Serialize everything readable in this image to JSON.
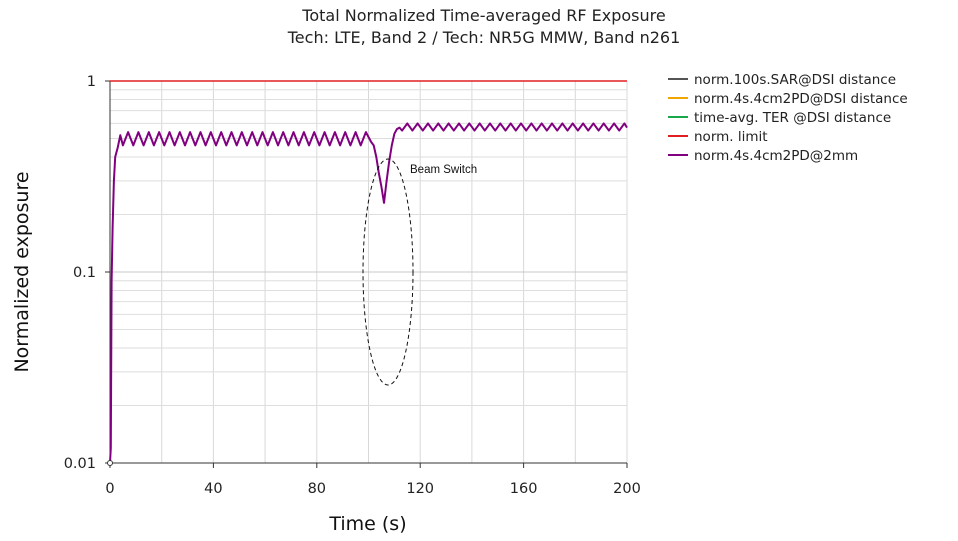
{
  "chart_data": {
    "type": "line",
    "title": "Total Normalized Time-averaged RF Exposure",
    "subtitle": "Tech: LTE, Band 2 / Tech: NR5G MMW, Band n261",
    "xlabel": "Time (s)",
    "ylabel": "Normalized exposure",
    "xlim": [
      0,
      200
    ],
    "ylim": [
      0.01,
      1
    ],
    "yscale": "log",
    "grid": true,
    "legend_position": "right",
    "x_ticks": [
      "0",
      "40",
      "80",
      "120",
      "160",
      "200"
    ],
    "y_ticks": [
      "0.01",
      "0.1",
      "1"
    ],
    "annotation": "Beam Switch",
    "series": [
      {
        "name": "norm.100s.SAR@DSI distance",
        "color": "#555555",
        "x": [],
        "y": []
      },
      {
        "name": "norm.4s.4cm2PD@DSI distance",
        "color": "#f0a500",
        "x": [],
        "y": []
      },
      {
        "name": "time-avg. TER @DSI distance",
        "color": "#1aa84c",
        "x": [],
        "y": []
      },
      {
        "name": "norm. limit",
        "color": "#e02020",
        "x": [
          0,
          200
        ],
        "y": [
          1,
          1
        ]
      },
      {
        "name": "norm.4s.4cm2PD@2mm",
        "color": "#800080",
        "x": [
          0,
          0.3,
          0.6,
          1,
          1.5,
          2,
          3,
          4,
          5,
          7,
          9,
          11,
          13,
          15,
          17,
          19,
          21,
          23,
          25,
          27,
          29,
          31,
          33,
          35,
          37,
          39,
          41,
          43,
          45,
          47,
          49,
          51,
          53,
          55,
          57,
          59,
          61,
          63,
          65,
          67,
          69,
          71,
          73,
          75,
          77,
          79,
          81,
          83,
          85,
          87,
          89,
          91,
          93,
          95,
          97,
          99,
          101,
          102,
          103,
          104,
          105,
          106,
          107,
          108,
          109,
          110,
          111,
          112,
          113,
          115,
          117,
          119,
          121,
          123,
          125,
          127,
          129,
          131,
          133,
          135,
          137,
          139,
          141,
          143,
          145,
          147,
          149,
          151,
          153,
          155,
          157,
          159,
          161,
          163,
          165,
          167,
          169,
          171,
          173,
          175,
          177,
          179,
          181,
          183,
          185,
          187,
          189,
          191,
          193,
          195,
          197,
          199,
          200
        ],
        "y": [
          0.01,
          0.012,
          0.09,
          0.17,
          0.3,
          0.4,
          0.45,
          0.52,
          0.46,
          0.54,
          0.46,
          0.54,
          0.46,
          0.54,
          0.46,
          0.54,
          0.46,
          0.54,
          0.46,
          0.54,
          0.46,
          0.54,
          0.46,
          0.54,
          0.46,
          0.54,
          0.46,
          0.54,
          0.46,
          0.54,
          0.46,
          0.54,
          0.46,
          0.54,
          0.46,
          0.54,
          0.46,
          0.54,
          0.46,
          0.54,
          0.46,
          0.54,
          0.46,
          0.54,
          0.46,
          0.54,
          0.46,
          0.54,
          0.46,
          0.54,
          0.46,
          0.54,
          0.46,
          0.54,
          0.46,
          0.54,
          0.48,
          0.46,
          0.4,
          0.33,
          0.28,
          0.23,
          0.3,
          0.38,
          0.46,
          0.53,
          0.56,
          0.57,
          0.55,
          0.6,
          0.55,
          0.6,
          0.55,
          0.6,
          0.55,
          0.6,
          0.55,
          0.6,
          0.55,
          0.6,
          0.55,
          0.6,
          0.55,
          0.6,
          0.55,
          0.6,
          0.55,
          0.6,
          0.55,
          0.6,
          0.55,
          0.6,
          0.55,
          0.6,
          0.55,
          0.6,
          0.55,
          0.6,
          0.55,
          0.6,
          0.55,
          0.6,
          0.55,
          0.6,
          0.55,
          0.6,
          0.55,
          0.6,
          0.55,
          0.6,
          0.55,
          0.6,
          0.57
        ]
      }
    ]
  }
}
